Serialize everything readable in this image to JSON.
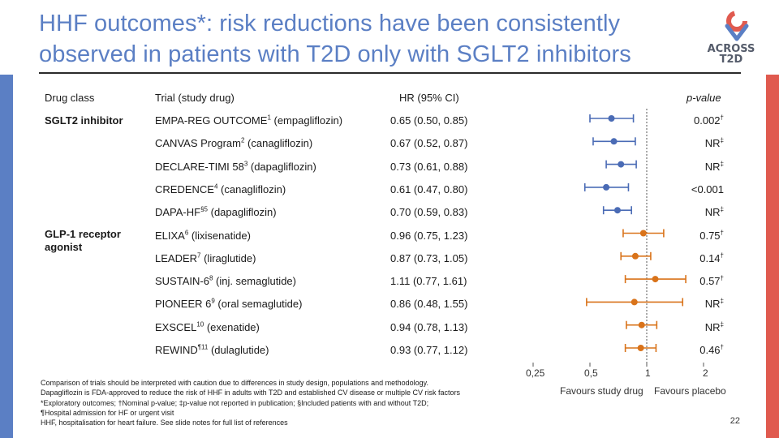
{
  "slide": {
    "title_line1": "HHF outcomes*: risk reductions have been consistently",
    "title_line2": "observed in patients with T2D only with SGLT2 inhibitors",
    "logo_text_line1": "ACROSS",
    "logo_text_line2": "T2D",
    "page_number": "22",
    "colors": {
      "title": "#5b7fc4",
      "sglt2": "#4a6bb5",
      "glp1": "#d9731a",
      "left_bar": "#5b7fc4",
      "right_bar": "#e05a4f"
    }
  },
  "table": {
    "headers": {
      "drug_class": "Drug class",
      "trial": "Trial (study drug)",
      "hr": "HR (95% CI)",
      "p": "p-value"
    },
    "groups": [
      {
        "label": "SGLT2 inhibitor"
      },
      {
        "label": "GLP-1 receptor agonist"
      }
    ],
    "rows": [
      {
        "trial": "EMPA-REG OUTCOME",
        "ref": "1",
        "drug": " (empagliflozin)",
        "hr": "0.65 (0.50, 0.85)",
        "p": "0.002",
        "p_mark": "†",
        "group": "sglt2"
      },
      {
        "trial": "CANVAS Program",
        "ref": "2",
        "drug": " (canagliflozin)",
        "hr": "0.67 (0.52, 0.87)",
        "p": "NR",
        "p_mark": "‡",
        "group": "sglt2"
      },
      {
        "trial": "DECLARE-TIMI 58",
        "ref": "3",
        "drug": " (dapagliflozin)",
        "hr": "0.73 (0.61, 0.88)",
        "p": "NR",
        "p_mark": "‡",
        "group": "sglt2"
      },
      {
        "trial": "CREDENCE",
        "ref": "4",
        "drug": " (canagliflozin)",
        "hr": "0.61 (0.47, 0.80)",
        "p": "<0.001",
        "p_mark": "",
        "group": "sglt2"
      },
      {
        "trial": "DAPA-HF",
        "ref": "§5",
        "drug": " (dapagliflozin)",
        "hr": "0.70 (0.59, 0.83)",
        "p": "NR",
        "p_mark": "‡",
        "group": "sglt2"
      },
      {
        "trial": "ELIXA",
        "ref": "6",
        "drug": " (lixisenatide)",
        "hr": "0.96 (0.75, 1.23)",
        "p": "0.75",
        "p_mark": "†",
        "group": "glp1"
      },
      {
        "trial": "LEADER",
        "ref": "7",
        "drug": " (liraglutide)",
        "hr": "0.87 (0.73, 1.05)",
        "p": "0.14",
        "p_mark": "†",
        "group": "glp1"
      },
      {
        "trial": "SUSTAIN-6",
        "ref": "8",
        "drug": " (inj. semaglutide)",
        "hr": "1.11 (0.77, 1.61)",
        "p": "0.57",
        "p_mark": "†",
        "group": "glp1"
      },
      {
        "trial": "PIONEER 6",
        "ref": "9",
        "drug": " (oral semaglutide)",
        "hr": "0.86 (0.48, 1.55)",
        "p": "NR",
        "p_mark": "‡",
        "group": "glp1"
      },
      {
        "trial": "EXSCEL",
        "ref": "10",
        "drug": " (exenatide)",
        "hr": "0.94 (0.78, 1.13)",
        "p": "NR",
        "p_mark": "‡",
        "group": "glp1"
      },
      {
        "trial": "REWIND",
        "ref": "¶11",
        "drug": " (dulaglutide)",
        "hr": "0.93 (0.77, 1.12)",
        "p": "0.46",
        "p_mark": "†",
        "group": "glp1"
      }
    ]
  },
  "chart_data": {
    "type": "scatter",
    "subtype": "forest",
    "x_scale": "log",
    "xlim": [
      0.25,
      2
    ],
    "x_ticks": [
      "0,25",
      "0,5",
      "1",
      "2"
    ],
    "x_tick_values": [
      0.25,
      0.5,
      1,
      2
    ],
    "reference_line": 1,
    "favours_left": "Favours study drug",
    "favours_right": "Favours placebo",
    "series": [
      {
        "name": "SGLT2 inhibitor",
        "color": "#4a6bb5",
        "points": [
          {
            "hr": 0.65,
            "lo": 0.5,
            "hi": 0.85
          },
          {
            "hr": 0.67,
            "lo": 0.52,
            "hi": 0.87
          },
          {
            "hr": 0.73,
            "lo": 0.61,
            "hi": 0.88
          },
          {
            "hr": 0.61,
            "lo": 0.47,
            "hi": 0.8
          },
          {
            "hr": 0.7,
            "lo": 0.59,
            "hi": 0.83
          }
        ]
      },
      {
        "name": "GLP-1 receptor agonist",
        "color": "#d9731a",
        "points": [
          {
            "hr": 0.96,
            "lo": 0.75,
            "hi": 1.23
          },
          {
            "hr": 0.87,
            "lo": 0.73,
            "hi": 1.05
          },
          {
            "hr": 1.11,
            "lo": 0.77,
            "hi": 1.61
          },
          {
            "hr": 0.86,
            "lo": 0.48,
            "hi": 1.55
          },
          {
            "hr": 0.94,
            "lo": 0.78,
            "hi": 1.13
          },
          {
            "hr": 0.93,
            "lo": 0.77,
            "hi": 1.12
          }
        ]
      }
    ]
  },
  "footnotes": [
    "Comparison of trials should be interpreted with caution due to differences in study design, populations and methodology.",
    "Dapagliflozin is FDA-approved to reduce the risk of HHF in adults with T2D and established CV disease or multiple CV risk factors",
    "*Exploratory outcomes; †Nominal p-value; ‡p-value not reported in publication; §Included patients with and without T2D;",
    "¶Hospital admission for HF or urgent visit",
    "HHF, hospitalisation for heart failure. See slide notes for full list of references"
  ]
}
